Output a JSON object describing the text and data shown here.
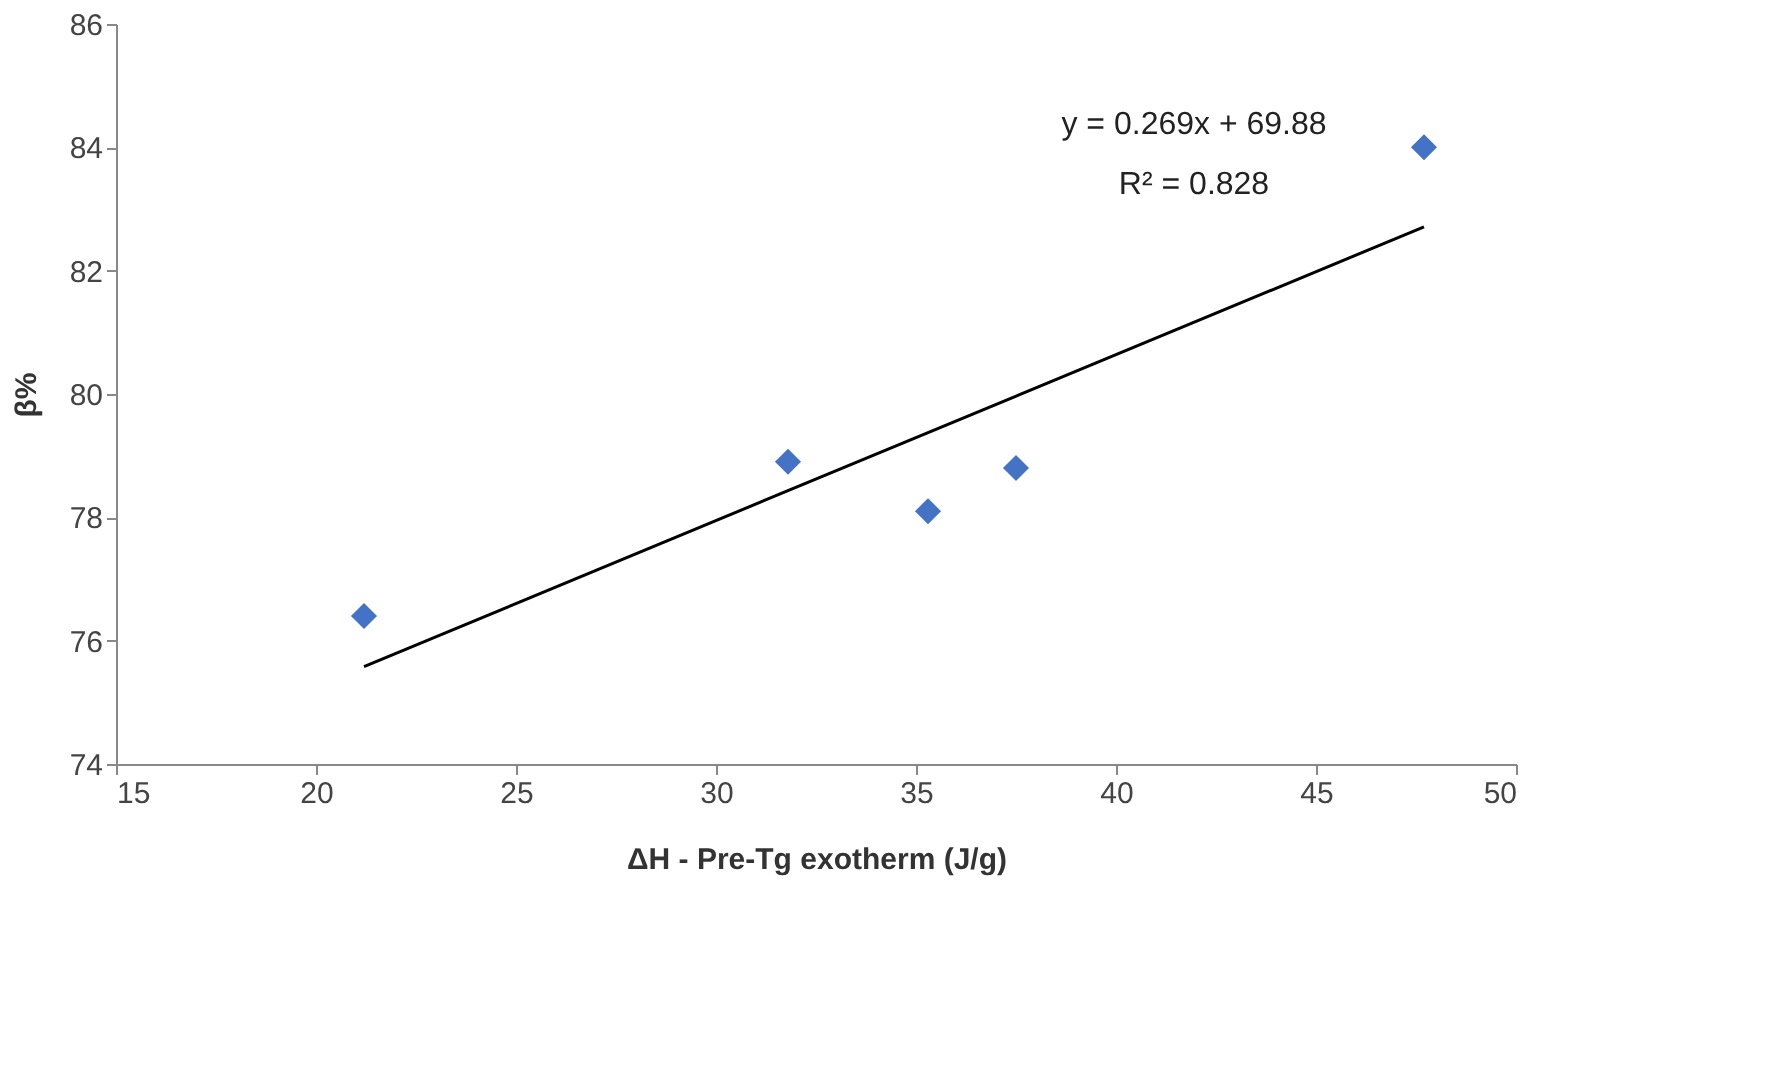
{
  "chart_data": {
    "type": "scatter",
    "xlabel": "ΔH - Pre-Tg exotherm (J/g)",
    "ylabel": "β%",
    "xlim": [
      15,
      50
    ],
    "xticks": [
      15,
      20,
      25,
      30,
      35,
      40,
      45,
      50
    ],
    "ylim": [
      74,
      86
    ],
    "yticks": [
      74,
      76,
      78,
      80,
      82,
      84,
      86
    ],
    "grid": false,
    "series": [
      {
        "marker": "diamond",
        "color": "#4472c4",
        "x": [
          21.2,
          31.8,
          35.3,
          37.5,
          47.7
        ],
        "values": [
          76.4,
          78.9,
          78.1,
          78.8,
          84.0
        ]
      },
      {
        "type": "line",
        "marker": "none",
        "color": "#000000",
        "line_style": "solid",
        "x": [
          21.2,
          47.7
        ],
        "values": [
          75.58,
          82.71
        ]
      }
    ],
    "annotations": [
      "y = 0.269x + 69.88",
      "R² = 0.828"
    ]
  }
}
